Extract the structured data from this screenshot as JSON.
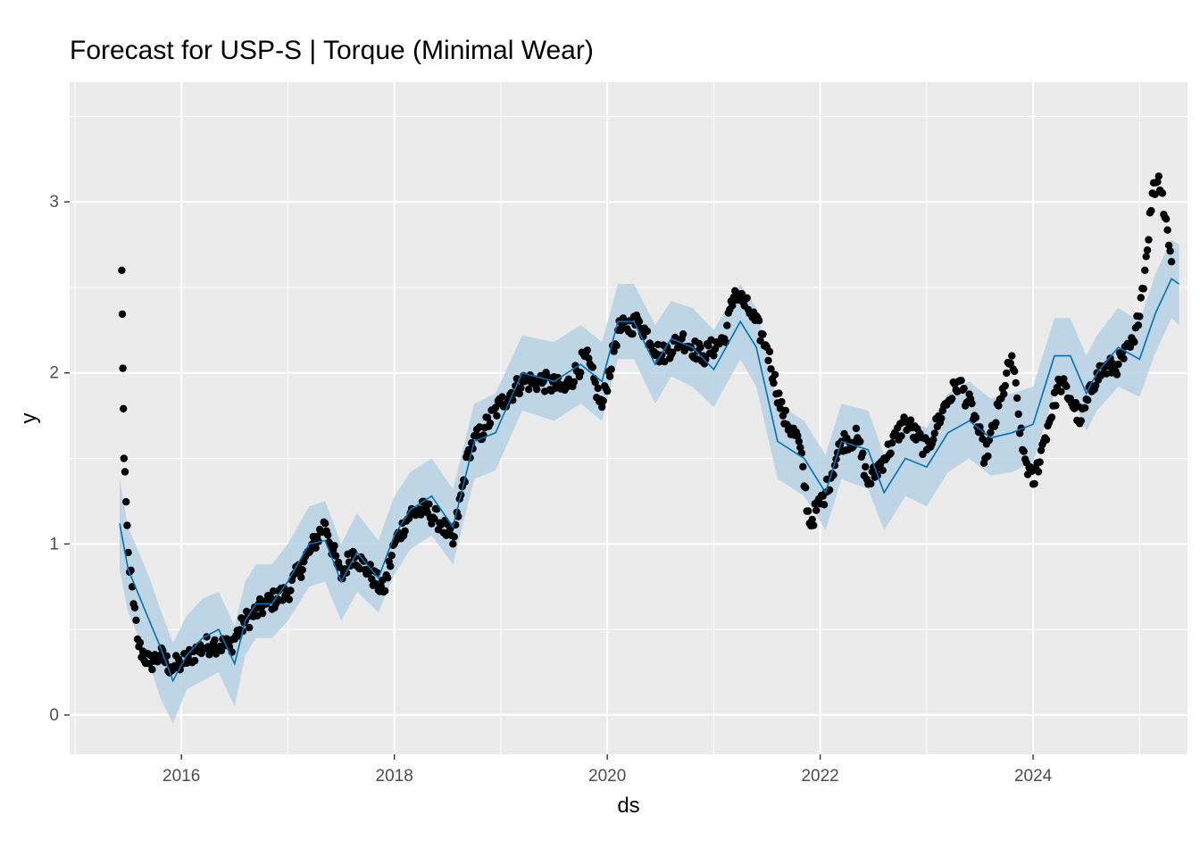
{
  "chart_data": {
    "type": "line",
    "title": "Forecast for USP-S | Torque (Minimal Wear)",
    "xlabel": "ds",
    "ylabel": "y",
    "xlim": [
      2014.95,
      2025.45
    ],
    "ylim": [
      -0.23,
      3.7
    ],
    "x_ticks": [
      2016,
      2018,
      2020,
      2022,
      2024
    ],
    "x_tick_labels": [
      "2016",
      "2018",
      "2020",
      "2022",
      "2024"
    ],
    "y_ticks": [
      0,
      1,
      2,
      3
    ],
    "y_tick_labels": [
      "0",
      "1",
      "2",
      "3"
    ],
    "grid": true,
    "colors": {
      "panel": "#ebebeb",
      "grid": "#ffffff",
      "points": "#000000",
      "forecast": "#0072b2",
      "interval": "#b5d1e3"
    },
    "series": [
      {
        "name": "forecast (yhat)",
        "x": [
          2015.42,
          2015.5,
          2015.6,
          2015.7,
          2015.8,
          2015.92,
          2016.05,
          2016.2,
          2016.35,
          2016.5,
          2016.6,
          2016.7,
          2016.85,
          2017.0,
          2017.2,
          2017.35,
          2017.5,
          2017.65,
          2017.85,
          2018.0,
          2018.15,
          2018.35,
          2018.55,
          2018.75,
          2018.95,
          2019.2,
          2019.5,
          2019.75,
          2019.95,
          2020.1,
          2020.25,
          2020.45,
          2020.6,
          2020.8,
          2021.0,
          2021.25,
          2021.4,
          2021.6,
          2021.85,
          2022.05,
          2022.2,
          2022.45,
          2022.6,
          2022.8,
          2023.0,
          2023.2,
          2023.4,
          2023.6,
          2023.8,
          2024.0,
          2024.2,
          2024.35,
          2024.5,
          2024.6,
          2024.8,
          2025.0,
          2025.15,
          2025.3,
          2025.37
        ],
        "yhat": [
          1.12,
          0.85,
          0.7,
          0.55,
          0.4,
          0.2,
          0.35,
          0.45,
          0.5,
          0.3,
          0.55,
          0.65,
          0.65,
          0.78,
          1.0,
          1.02,
          0.78,
          0.95,
          0.8,
          1.05,
          1.2,
          1.28,
          1.1,
          1.6,
          1.65,
          2.0,
          1.95,
          2.05,
          1.95,
          2.3,
          2.3,
          2.05,
          2.2,
          2.15,
          2.02,
          2.3,
          2.15,
          1.6,
          1.5,
          1.3,
          1.6,
          1.55,
          1.3,
          1.5,
          1.45,
          1.65,
          1.72,
          1.62,
          1.65,
          1.7,
          2.1,
          2.1,
          1.88,
          2.0,
          2.15,
          2.08,
          2.35,
          2.55,
          2.52
        ],
        "lower": [
          0.85,
          0.6,
          0.45,
          0.3,
          0.1,
          -0.05,
          0.15,
          0.2,
          0.25,
          0.05,
          0.35,
          0.45,
          0.45,
          0.55,
          0.75,
          0.78,
          0.55,
          0.72,
          0.6,
          0.82,
          0.97,
          1.05,
          0.88,
          1.38,
          1.43,
          1.78,
          1.72,
          1.82,
          1.72,
          2.08,
          2.08,
          1.82,
          1.98,
          1.92,
          1.8,
          2.08,
          1.92,
          1.38,
          1.28,
          1.08,
          1.38,
          1.32,
          1.08,
          1.28,
          1.22,
          1.42,
          1.5,
          1.4,
          1.42,
          1.48,
          1.88,
          1.88,
          1.66,
          1.78,
          1.92,
          1.86,
          2.12,
          2.32,
          2.28
        ],
        "upper": [
          1.38,
          1.1,
          0.95,
          0.8,
          0.62,
          0.42,
          0.58,
          0.68,
          0.72,
          0.52,
          0.78,
          0.88,
          0.88,
          1.0,
          1.22,
          1.25,
          1.0,
          1.18,
          1.02,
          1.28,
          1.42,
          1.5,
          1.32,
          1.82,
          1.88,
          2.22,
          2.18,
          2.28,
          2.18,
          2.52,
          2.52,
          2.28,
          2.42,
          2.38,
          2.25,
          2.52,
          2.38,
          1.82,
          1.72,
          1.52,
          1.82,
          1.78,
          1.52,
          1.72,
          1.68,
          1.88,
          1.95,
          1.85,
          1.88,
          1.92,
          2.32,
          2.32,
          2.1,
          2.22,
          2.38,
          2.3,
          2.58,
          2.78,
          2.75
        ]
      },
      {
        "name": "observed (y)",
        "x": [
          2015.44,
          2015.46,
          2015.5,
          2015.55,
          2015.6,
          2015.7,
          2015.8,
          2015.9,
          2016.0,
          2016.15,
          2016.3,
          2016.45,
          2016.6,
          2016.8,
          2017.0,
          2017.2,
          2017.35,
          2017.5,
          2017.6,
          2017.75,
          2017.9,
          2018.0,
          2018.15,
          2018.3,
          2018.45,
          2018.55,
          2018.7,
          2018.85,
          2019.0,
          2019.2,
          2019.4,
          2019.6,
          2019.8,
          2019.95,
          2020.1,
          2020.3,
          2020.5,
          2020.7,
          2020.9,
          2021.1,
          2021.2,
          2021.35,
          2021.5,
          2021.65,
          2021.8,
          2021.9,
          2022.05,
          2022.2,
          2022.35,
          2022.45,
          2022.6,
          2022.8,
          2023.0,
          2023.15,
          2023.3,
          2023.45,
          2023.55,
          2023.7,
          2023.8,
          2023.9,
          2024.0,
          2024.1,
          2024.25,
          2024.35,
          2024.45,
          2024.6,
          2024.8,
          2024.95,
          2025.05,
          2025.12,
          2025.18,
          2025.25,
          2025.3
        ],
        "y": [
          2.6,
          1.5,
          0.95,
          0.65,
          0.4,
          0.3,
          0.35,
          0.28,
          0.3,
          0.38,
          0.42,
          0.4,
          0.55,
          0.65,
          0.72,
          0.95,
          1.12,
          0.8,
          0.95,
          0.85,
          0.72,
          1.0,
          1.18,
          1.2,
          1.12,
          1.0,
          1.55,
          1.68,
          1.82,
          1.95,
          1.95,
          1.9,
          2.1,
          1.8,
          2.25,
          2.3,
          2.1,
          2.2,
          2.1,
          2.2,
          2.48,
          2.35,
          2.15,
          1.75,
          1.6,
          1.12,
          1.3,
          1.6,
          1.62,
          1.35,
          1.5,
          1.72,
          1.55,
          1.78,
          1.95,
          1.75,
          1.5,
          1.85,
          2.1,
          1.55,
          1.35,
          1.6,
          1.95,
          1.85,
          1.72,
          2.0,
          2.05,
          2.18,
          2.6,
          3.05,
          3.15,
          2.9,
          2.65
        ]
      }
    ]
  }
}
